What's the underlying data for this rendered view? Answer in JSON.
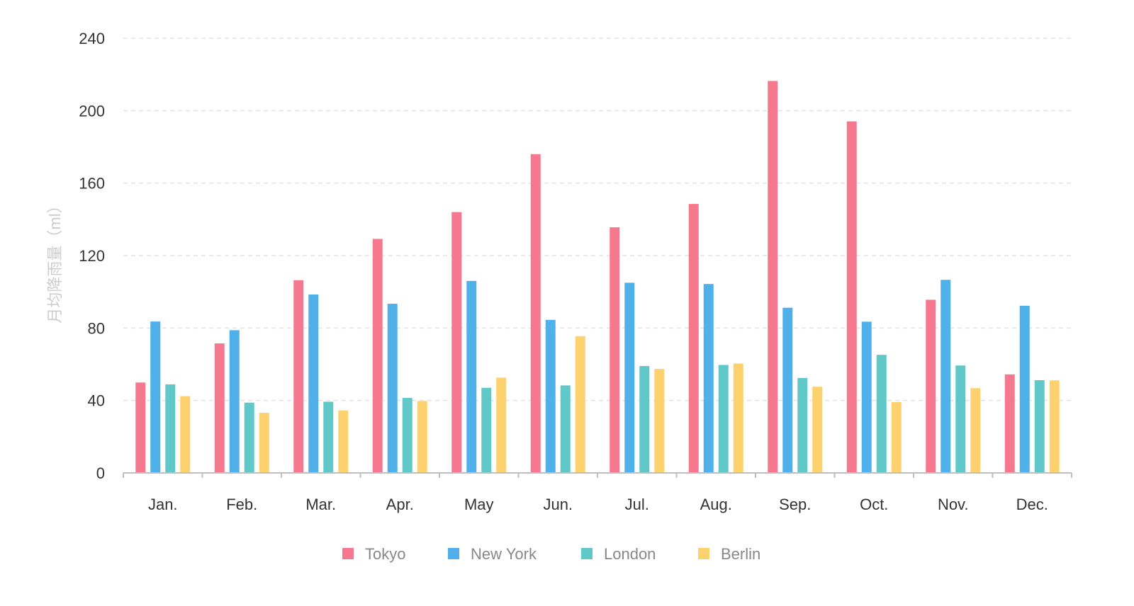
{
  "chart_data": {
    "type": "bar",
    "ylabel": "月均降雨量（ml）",
    "xlabel": "",
    "ylim": [
      0,
      240
    ],
    "yticks": [
      0,
      40,
      80,
      120,
      160,
      200,
      240
    ],
    "grid": true,
    "legend_position": "bottom",
    "categories": [
      "Jan.",
      "Feb.",
      "Mar.",
      "Apr.",
      "May",
      "Jun.",
      "Jul.",
      "Aug.",
      "Sep.",
      "Oct.",
      "Nov.",
      "Dec."
    ],
    "series": [
      {
        "name": "Tokyo",
        "color": "#f5788f",
        "values": [
          49.9,
          71.5,
          106.4,
          129.2,
          144.0,
          176.0,
          135.6,
          148.5,
          216.4,
          194.1,
          95.6,
          54.4
        ]
      },
      {
        "name": "New York",
        "color": "#4fb0ea",
        "values": [
          83.6,
          78.8,
          98.5,
          93.4,
          106.0,
          84.5,
          105.0,
          104.3,
          91.2,
          83.5,
          106.6,
          92.3
        ]
      },
      {
        "name": "London",
        "color": "#60c8c8",
        "values": [
          48.9,
          38.8,
          39.3,
          41.4,
          47.0,
          48.3,
          59.0,
          59.6,
          52.4,
          65.2,
          59.3,
          51.2
        ]
      },
      {
        "name": "Berlin",
        "color": "#fdd26e",
        "values": [
          42.4,
          33.2,
          34.5,
          39.7,
          52.6,
          75.5,
          57.4,
          60.4,
          47.6,
          39.1,
          46.8,
          51.1
        ]
      }
    ]
  }
}
